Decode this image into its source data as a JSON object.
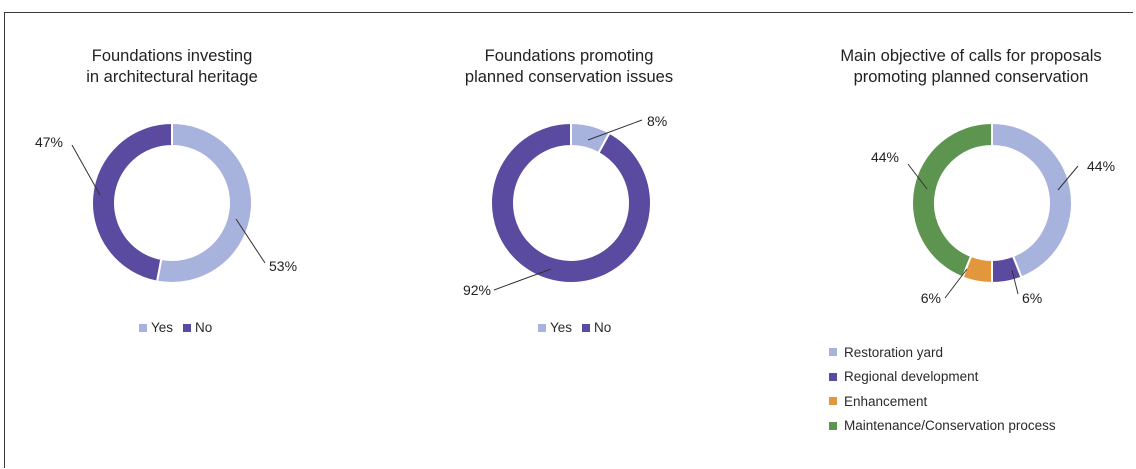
{
  "chart_data": [
    {
      "type": "pie",
      "title": "Foundations investing\nin architectural heritage",
      "categories": [
        "Yes",
        "No"
      ],
      "values": [
        53,
        47
      ],
      "labels": [
        "53%",
        "47%"
      ],
      "colors": [
        "#a7b2dd",
        "#5a4ba1"
      ],
      "legend": [
        "Yes",
        "No"
      ],
      "legend_position": "bottom"
    },
    {
      "type": "pie",
      "title": "Foundations promoting\nplanned conservation issues",
      "categories": [
        "Yes",
        "No"
      ],
      "values": [
        8,
        92
      ],
      "labels": [
        "8%",
        "92%"
      ],
      "colors": [
        "#a7b2dd",
        "#5a4ba1"
      ],
      "legend": [
        "Yes",
        "No"
      ],
      "legend_position": "bottom"
    },
    {
      "type": "pie",
      "title": "Main objective of calls for proposals\npromoting planned conservation",
      "categories": [
        "Restoration yard",
        "Regional development",
        "Enhancement",
        "Maintenance/Conservation process"
      ],
      "values": [
        44,
        6,
        6,
        44
      ],
      "labels": [
        "44%",
        "6%",
        "6%",
        "44%"
      ],
      "colors": [
        "#a7b2dd",
        "#5a4ba1",
        "#e3973d",
        "#5c9450"
      ],
      "legend": [
        "Restoration yard",
        "Regional development",
        "Enhancement",
        "Maintenance/Conservation process"
      ],
      "legend_position": "bottom"
    }
  ]
}
